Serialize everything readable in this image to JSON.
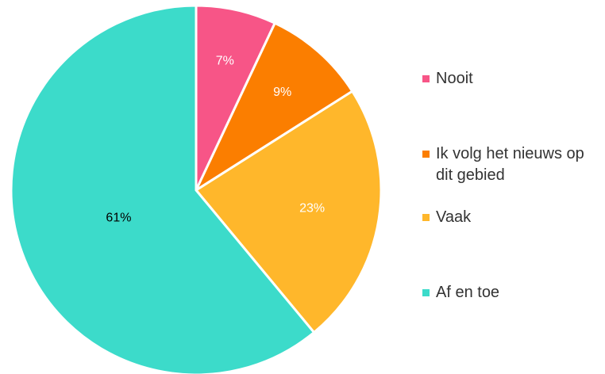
{
  "chart_data": {
    "type": "pie",
    "categories": [
      "Nooit",
      "Ik volg het nieuws op dit gebied",
      "Vaak",
      "Af en toe"
    ],
    "values": [
      7,
      9,
      23,
      61
    ],
    "value_labels": [
      "7%",
      "9%",
      "23%",
      "61%"
    ],
    "colors": [
      "#f75587",
      "#fb7e00",
      "#ffb72b",
      "#3cdbca"
    ],
    "value_label_colors": [
      "#ffffff",
      "#ffffff",
      "#ffffff",
      "#000000"
    ],
    "legend": "right"
  }
}
